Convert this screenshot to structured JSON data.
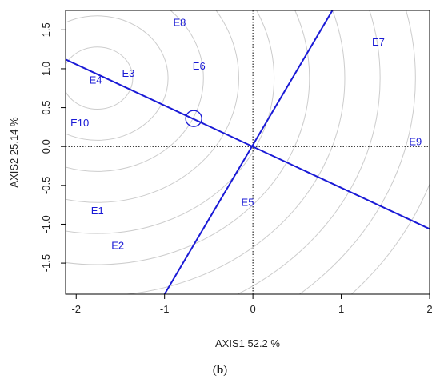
{
  "chart_data": {
    "type": "scatter",
    "xlabel": "AXIS1 52.2 %",
    "ylabel": "AXIS2 25.14 %",
    "xlim": [
      -2.12,
      2.0
    ],
    "ylim": [
      -1.9,
      1.75
    ],
    "xticks": [
      "-2",
      "-1",
      "0",
      "1",
      "2"
    ],
    "yticks": [
      "-1.5",
      "-1.0",
      "-0.5",
      "0.0",
      "0.5",
      "1.0",
      "1.5"
    ],
    "xtick_values": [
      -2,
      -1,
      0,
      1,
      2
    ],
    "ytick_values": [
      -1.5,
      -1.0,
      -0.5,
      0.0,
      0.5,
      1.0,
      1.5
    ],
    "grid": false,
    "points": [
      {
        "label": "E1",
        "x": -1.76,
        "y": -0.82
      },
      {
        "label": "E2",
        "x": -1.53,
        "y": -1.27
      },
      {
        "label": "E3",
        "x": -1.41,
        "y": 0.95
      },
      {
        "label": "E4",
        "x": -1.78,
        "y": 0.86
      },
      {
        "label": "E5",
        "x": -0.06,
        "y": -0.71
      },
      {
        "label": "E6",
        "x": -0.61,
        "y": 1.04
      },
      {
        "label": "E7",
        "x": 1.42,
        "y": 1.35
      },
      {
        "label": "E8",
        "x": -0.83,
        "y": 1.6
      },
      {
        "label": "E9",
        "x": 1.84,
        "y": 0.07
      },
      {
        "label": "E10",
        "x": -1.96,
        "y": 0.31
      }
    ],
    "ideal_point": {
      "x": -0.67,
      "y": 0.36
    },
    "concentric_center": {
      "x": -1.76,
      "y": 0.88
    },
    "concentric_radii": [
      0.4,
      0.8,
      1.2,
      1.6,
      2.0,
      2.4,
      2.8,
      3.2,
      3.6,
      4.0
    ],
    "lines": [
      {
        "from": {
          "x": -2.12,
          "y": 1.12
        },
        "to": {
          "x": 2.0,
          "y": -1.06
        }
      },
      {
        "from": {
          "x": -1.0,
          "y": -1.9
        },
        "to": {
          "x": 0.9,
          "y": 1.75
        }
      }
    ],
    "reference_lines": {
      "x": 0,
      "y": 0
    },
    "colors": {
      "points": "#1a1ad6",
      "lines": "#1a1ad6",
      "circles": "#cccccc",
      "axes": "#000000"
    }
  },
  "caption": {
    "prefix": "(",
    "letter": "b",
    "suffix": ")"
  }
}
